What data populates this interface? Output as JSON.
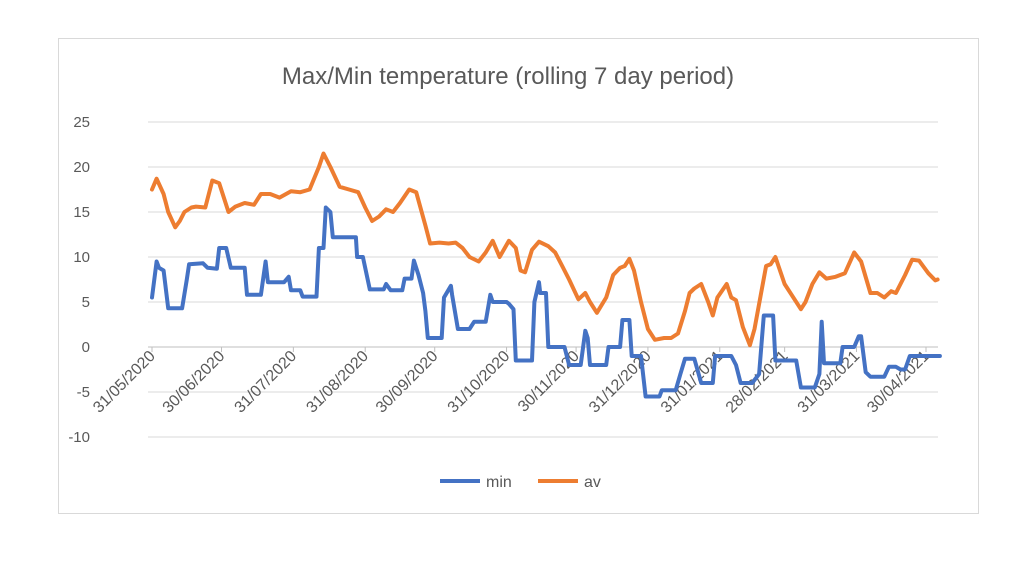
{
  "chart_data": {
    "type": "line",
    "title": "Max/Min temperature (rolling 7 day period)",
    "xlabel": "",
    "ylabel": "",
    "x_unit": "days since 31/05/2020",
    "ylim": [
      -10,
      25
    ],
    "yticks": [
      -10,
      -5,
      0,
      5,
      10,
      15,
      20,
      25
    ],
    "xticks": [
      {
        "day": 0,
        "label": "31/05/2020"
      },
      {
        "day": 30,
        "label": "30/06/2020"
      },
      {
        "day": 61,
        "label": "31/07/2020"
      },
      {
        "day": 92,
        "label": "31/08/2020"
      },
      {
        "day": 122,
        "label": "30/09/2020"
      },
      {
        "day": 153,
        "label": "31/10/2020"
      },
      {
        "day": 183,
        "label": "30/11/2020"
      },
      {
        "day": 214,
        "label": "31/12/2020"
      },
      {
        "day": 245,
        "label": "31/01/2021"
      },
      {
        "day": 273,
        "label": "28/02/2021"
      },
      {
        "day": 304,
        "label": "31/03/2021"
      },
      {
        "day": 334,
        "label": "30/04/2021"
      }
    ],
    "xlim": [
      0,
      340
    ],
    "grid": true,
    "legend_position": "bottom",
    "series": [
      {
        "name": "min",
        "color": "#4472c4",
        "points": [
          [
            0,
            5.5
          ],
          [
            2,
            9.5
          ],
          [
            3,
            8.8
          ],
          [
            5,
            8.5
          ],
          [
            7,
            4.3
          ],
          [
            13,
            4.3
          ],
          [
            15,
            7.5
          ],
          [
            16,
            9.2
          ],
          [
            22,
            9.3
          ],
          [
            24,
            8.8
          ],
          [
            28,
            8.7
          ],
          [
            29,
            11
          ],
          [
            32,
            11
          ],
          [
            34,
            8.8
          ],
          [
            40,
            8.8
          ],
          [
            41,
            5.8
          ],
          [
            47,
            5.8
          ],
          [
            49,
            9.5
          ],
          [
            50,
            7.2
          ],
          [
            57,
            7.2
          ],
          [
            59,
            7.8
          ],
          [
            60,
            6.3
          ],
          [
            64,
            6.3
          ],
          [
            65,
            5.6
          ],
          [
            71,
            5.6
          ],
          [
            72,
            11
          ],
          [
            74,
            11
          ],
          [
            75,
            15.5
          ],
          [
            77,
            15
          ],
          [
            78,
            12.2
          ],
          [
            88,
            12.2
          ],
          [
            88.5,
            10
          ],
          [
            91,
            10
          ],
          [
            94,
            6.4
          ],
          [
            100,
            6.4
          ],
          [
            101,
            7
          ],
          [
            103,
            6.3
          ],
          [
            108,
            6.3
          ],
          [
            109,
            7.6
          ],
          [
            112,
            7.6
          ],
          [
            113,
            9.6
          ],
          [
            115,
            8
          ],
          [
            117,
            6
          ],
          [
            118,
            4
          ],
          [
            119,
            1
          ],
          [
            125,
            1
          ],
          [
            126,
            5.5
          ],
          [
            129,
            6.8
          ],
          [
            129.5,
            5.8
          ],
          [
            132,
            2
          ],
          [
            137,
            2
          ],
          [
            139,
            2.8
          ],
          [
            144,
            2.8
          ],
          [
            146,
            5.8
          ],
          [
            147,
            5
          ],
          [
            153,
            5
          ],
          [
            154,
            4.8
          ],
          [
            156,
            4.2
          ],
          [
            157,
            -1.5
          ],
          [
            164,
            -1.5
          ],
          [
            165,
            5
          ],
          [
            167,
            7.2
          ],
          [
            167.5,
            6
          ],
          [
            170,
            6
          ],
          [
            171,
            0
          ],
          [
            178,
            0
          ],
          [
            180,
            -2
          ],
          [
            185,
            -2
          ],
          [
            187,
            1.8
          ],
          [
            188,
            1
          ],
          [
            189,
            -2
          ],
          [
            196,
            -2
          ],
          [
            197,
            0
          ],
          [
            202,
            0
          ],
          [
            203,
            3
          ],
          [
            206,
            3
          ],
          [
            207,
            -1
          ],
          [
            211,
            -1
          ],
          [
            213,
            -5.5
          ],
          [
            219,
            -5.5
          ],
          [
            220,
            -4.8
          ],
          [
            226,
            -4.8
          ],
          [
            228,
            -3
          ],
          [
            230,
            -1.3
          ],
          [
            234,
            -1.3
          ],
          [
            237,
            -4
          ],
          [
            242,
            -4
          ],
          [
            243,
            -1
          ],
          [
            250,
            -1
          ],
          [
            252,
            -2
          ],
          [
            254,
            -4
          ],
          [
            259,
            -4
          ],
          [
            262,
            -3
          ],
          [
            264,
            3.5
          ],
          [
            268,
            3.5
          ],
          [
            269,
            -1.5
          ],
          [
            278,
            -1.5
          ],
          [
            280,
            -4.5
          ],
          [
            286,
            -4.5
          ],
          [
            288,
            -3
          ],
          [
            289,
            2.8
          ],
          [
            290,
            -1.8
          ],
          [
            297,
            -1.8
          ],
          [
            298,
            0
          ],
          [
            303,
            0
          ],
          [
            305,
            1.2
          ],
          [
            306,
            1.2
          ],
          [
            308,
            -2.8
          ],
          [
            310,
            -3.3
          ],
          [
            316,
            -3.3
          ],
          [
            318,
            -2.2
          ],
          [
            321,
            -2.2
          ],
          [
            323,
            -2.5
          ],
          [
            325,
            -2.5
          ],
          [
            327,
            -1
          ],
          [
            340,
            -1
          ]
        ]
      },
      {
        "name": "av",
        "color": "#ed7d31",
        "points": [
          [
            0,
            17.5
          ],
          [
            2,
            18.7
          ],
          [
            5,
            17
          ],
          [
            7,
            15
          ],
          [
            10,
            13.3
          ],
          [
            12,
            14
          ],
          [
            14,
            15
          ],
          [
            17,
            15.5
          ],
          [
            19,
            15.6
          ],
          [
            23,
            15.5
          ],
          [
            26,
            18.5
          ],
          [
            29,
            18.2
          ],
          [
            33,
            15
          ],
          [
            36,
            15.6
          ],
          [
            40,
            16
          ],
          [
            44,
            15.8
          ],
          [
            47,
            17
          ],
          [
            51,
            17
          ],
          [
            55,
            16.6
          ],
          [
            60,
            17.3
          ],
          [
            64,
            17.2
          ],
          [
            68,
            17.5
          ],
          [
            72,
            20
          ],
          [
            74,
            21.5
          ],
          [
            77,
            20
          ],
          [
            81,
            17.8
          ],
          [
            85,
            17.5
          ],
          [
            89,
            17.2
          ],
          [
            92,
            15.5
          ],
          [
            95,
            14
          ],
          [
            98,
            14.5
          ],
          [
            101,
            15.3
          ],
          [
            104,
            15
          ],
          [
            107,
            16
          ],
          [
            111,
            17.5
          ],
          [
            114,
            17.2
          ],
          [
            118,
            13.5
          ],
          [
            120,
            11.5
          ],
          [
            124,
            11.6
          ],
          [
            128,
            11.5
          ],
          [
            131,
            11.6
          ],
          [
            134,
            11
          ],
          [
            137,
            10
          ],
          [
            141,
            9.5
          ],
          [
            144,
            10.5
          ],
          [
            147,
            11.8
          ],
          [
            150,
            10
          ],
          [
            154,
            11.8
          ],
          [
            157,
            11
          ],
          [
            159,
            8.5
          ],
          [
            161,
            8.3
          ],
          [
            164,
            10.8
          ],
          [
            167,
            11.7
          ],
          [
            171,
            11.2
          ],
          [
            174,
            10.5
          ],
          [
            177,
            9
          ],
          [
            180,
            7.5
          ],
          [
            184,
            5.3
          ],
          [
            187,
            6
          ],
          [
            189,
            5
          ],
          [
            192,
            3.8
          ],
          [
            196,
            5.5
          ],
          [
            199,
            8
          ],
          [
            202,
            8.8
          ],
          [
            204,
            9
          ],
          [
            206,
            9.8
          ],
          [
            208,
            8.5
          ],
          [
            211,
            5
          ],
          [
            214,
            2
          ],
          [
            217,
            0.8
          ],
          [
            221,
            1
          ],
          [
            224,
            1
          ],
          [
            227,
            1.5
          ],
          [
            230,
            4
          ],
          [
            232,
            6
          ],
          [
            234,
            6.5
          ],
          [
            237,
            7
          ],
          [
            240,
            5
          ],
          [
            242,
            3.5
          ],
          [
            244,
            5.5
          ],
          [
            248,
            7
          ],
          [
            250,
            5.5
          ],
          [
            252,
            5.2
          ],
          [
            255,
            2.2
          ],
          [
            258,
            0.2
          ],
          [
            260,
            2
          ],
          [
            265,
            9
          ],
          [
            267,
            9.2
          ],
          [
            269,
            10
          ],
          [
            273,
            7
          ],
          [
            276,
            5.8
          ],
          [
            280,
            4.2
          ],
          [
            282,
            5
          ],
          [
            285,
            7
          ],
          [
            288,
            8.3
          ],
          [
            291,
            7.6
          ],
          [
            295,
            7.8
          ],
          [
            299,
            8.2
          ],
          [
            303,
            10.5
          ],
          [
            306,
            9.5
          ],
          [
            310,
            6
          ],
          [
            313,
            6
          ],
          [
            316,
            5.5
          ],
          [
            319,
            6.2
          ],
          [
            321,
            6
          ],
          [
            325,
            8
          ],
          [
            328,
            9.7
          ],
          [
            331,
            9.6
          ],
          [
            335,
            8.2
          ],
          [
            338,
            7.4
          ],
          [
            339,
            7.5
          ]
        ]
      }
    ]
  }
}
